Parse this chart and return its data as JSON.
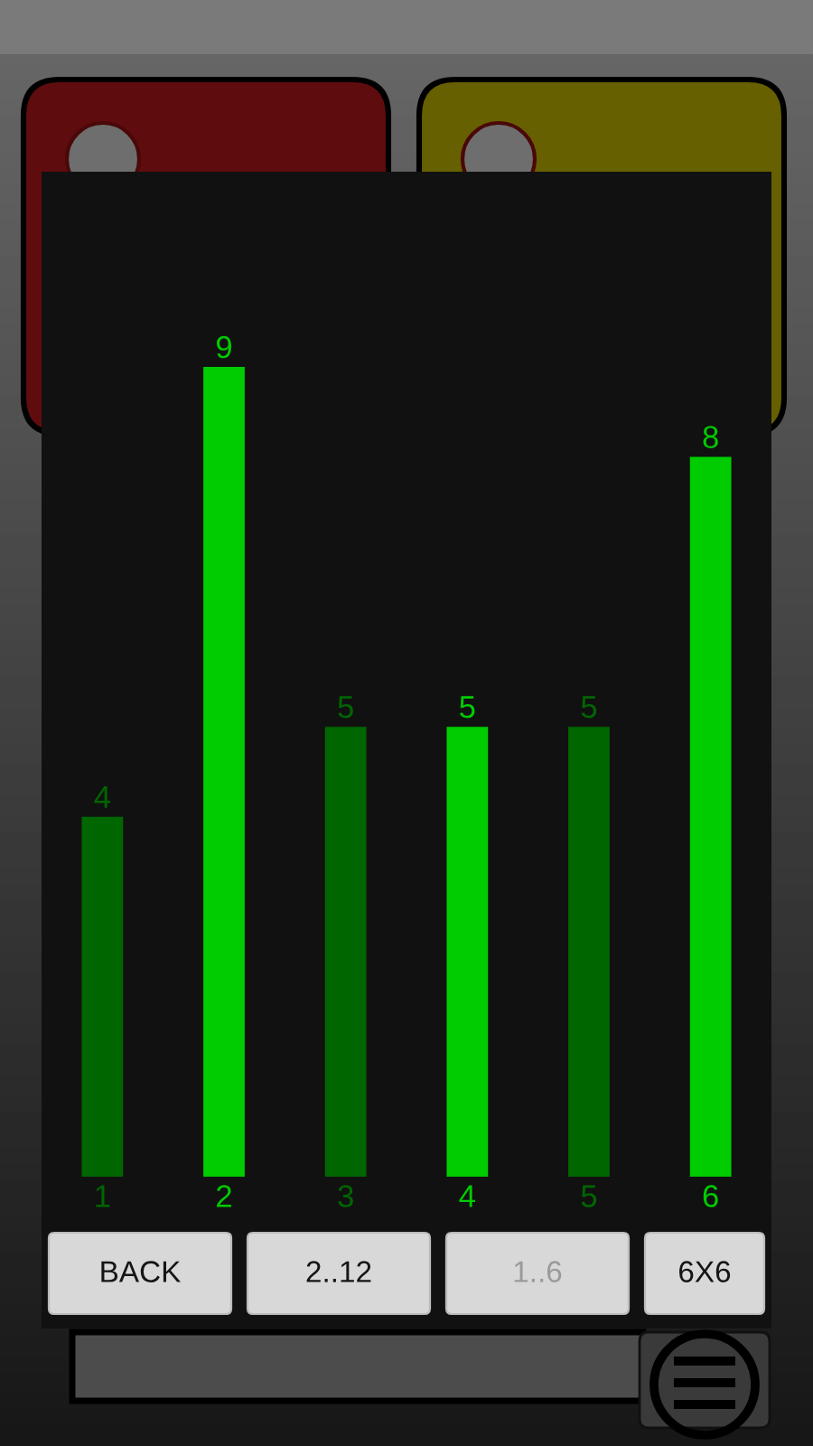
{
  "chart_data": {
    "type": "bar",
    "categories": [
      "1",
      "2",
      "3",
      "4",
      "5",
      "6"
    ],
    "values": [
      4,
      9,
      5,
      5,
      5,
      8
    ],
    "colors": [
      "#006600",
      "#00cc00",
      "#006600",
      "#00cc00",
      "#006600",
      "#00cc00"
    ],
    "data_labels": true,
    "tick_labels": "x",
    "annotations": [
      "BACK",
      "2..12",
      "1..6",
      "6X6"
    ]
  }
}
